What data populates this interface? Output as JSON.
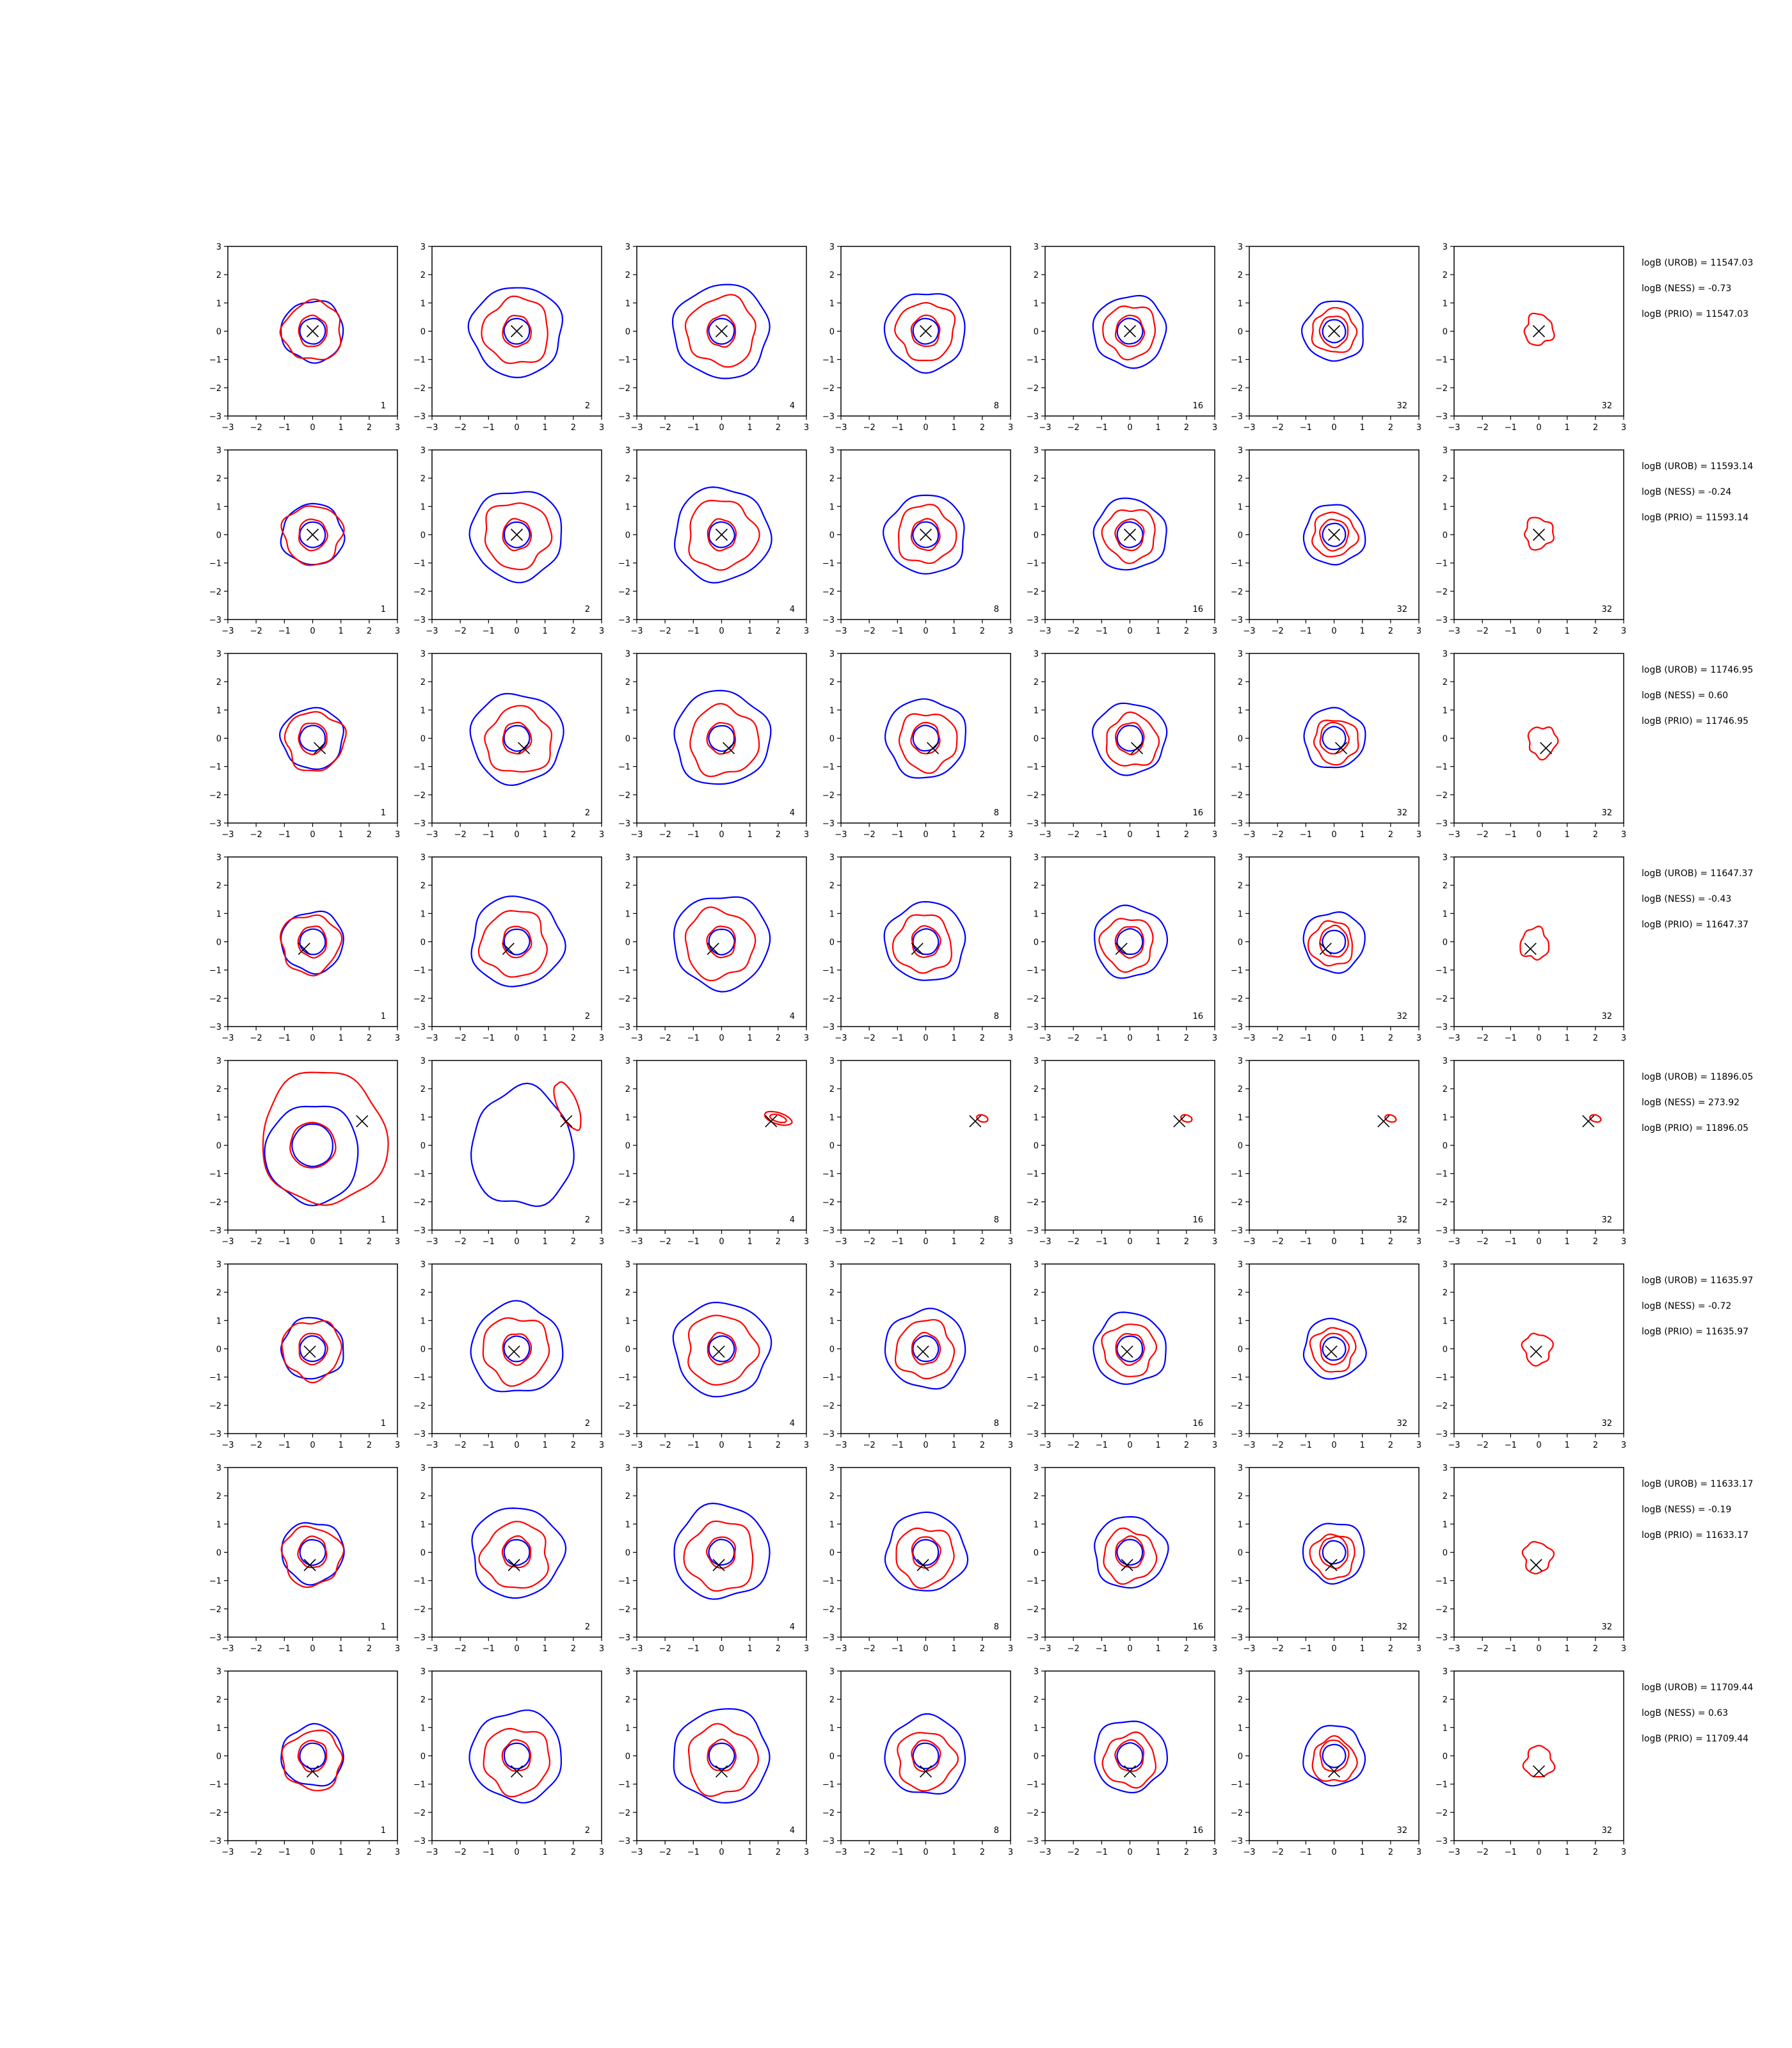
{
  "figure": {
    "grid": false,
    "contour_colors": {
      "blue": "#0000ff",
      "red": "#ff0000"
    },
    "marker": "x",
    "axis_ticks": [
      "−3",
      "−2",
      "−1",
      "0",
      "1",
      "2",
      "3"
    ]
  },
  "chart_data": {
    "type": "scatter",
    "layout": "8 rows x 7 columns of contour plot panels",
    "xlim": [
      -3,
      3
    ],
    "ylim": [
      -3,
      3
    ],
    "column_labels": [
      "1",
      "2",
      "4",
      "8",
      "16",
      "32",
      "32"
    ],
    "rows": [
      {
        "marker": [
          0.0,
          0.0
        ],
        "annotations": [
          "logB (UROB) = 11547.03",
          "logB (NESS) = -0.73",
          "logB (PRIO) = 11547.03"
        ]
      },
      {
        "marker": [
          0.0,
          0.0
        ],
        "annotations": [
          "logB (UROB) = 11593.14",
          "logB (NESS) = -0.24",
          "logB (PRIO) = 11593.14"
        ]
      },
      {
        "marker": [
          0.25,
          -0.35
        ],
        "annotations": [
          "logB (UROB) = 11746.95",
          "logB (NESS) = 0.60",
          "logB (PRIO) = 11746.95"
        ]
      },
      {
        "marker": [
          -0.3,
          -0.25
        ],
        "annotations": [
          "logB (UROB) = 11647.37",
          "logB (NESS) = -0.43",
          "logB (PRIO) = 11647.37"
        ]
      },
      {
        "marker": [
          1.75,
          0.85
        ],
        "annotations": [
          "logB (UROB) = 11896.05",
          "logB (NESS) = 273.92",
          "logB (PRIO) = 11896.05"
        ]
      },
      {
        "marker": [
          -0.1,
          -0.1
        ],
        "annotations": [
          "logB (UROB) = 11635.97",
          "logB (NESS) = -0.72",
          "logB (PRIO) = 11635.97"
        ]
      },
      {
        "marker": [
          -0.1,
          -0.45
        ],
        "annotations": [
          "logB (UROB) = 11633.17",
          "logB (NESS) = -0.19",
          "logB (PRIO) = 11633.17"
        ]
      },
      {
        "marker": [
          0.0,
          -0.55
        ],
        "annotations": [
          "logB (UROB) = 11709.44",
          "logB (NESS) = 0.63",
          "logB (PRIO) = 11709.44"
        ]
      }
    ]
  }
}
